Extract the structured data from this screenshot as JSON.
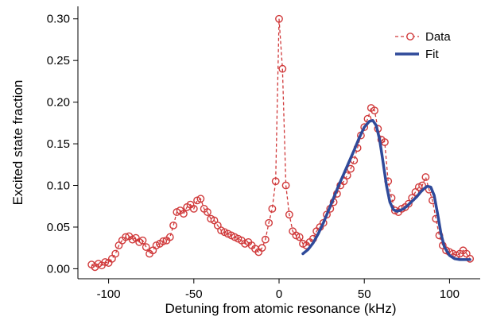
{
  "chart_data": {
    "type": "line",
    "xlabel": "Detuning from atomic resonance (kHz)",
    "ylabel": "Excited state fraction",
    "xlim": [
      -118,
      118
    ],
    "ylim": [
      -0.012,
      0.315
    ],
    "xticks": [
      -100,
      -50,
      0,
      50,
      100
    ],
    "xtick_labels": [
      "-100",
      "-50",
      "0",
      "50",
      "100"
    ],
    "yticks": [
      0.0,
      0.05,
      0.1,
      0.15,
      0.2,
      0.25,
      0.3
    ],
    "ytick_labels": [
      "0.00",
      "0.05",
      "0.10",
      "0.15",
      "0.20",
      "0.25",
      "0.30"
    ],
    "grid": false,
    "legend_position": "top-right",
    "colors": {
      "data": "#d0393a",
      "fit": "#2f4a9a"
    },
    "series": [
      {
        "name": "Data",
        "style": "dashed line with open circle markers",
        "x": [
          -110,
          -108,
          -106,
          -104,
          -102,
          -100,
          -98,
          -96,
          -94,
          -92,
          -90,
          -88,
          -86,
          -84,
          -82,
          -80,
          -78,
          -76,
          -74,
          -72,
          -70,
          -68,
          -66,
          -64,
          -62,
          -60,
          -58,
          -56,
          -54,
          -52,
          -50,
          -48,
          -46,
          -44,
          -42,
          -40,
          -38,
          -36,
          -34,
          -32,
          -30,
          -28,
          -26,
          -24,
          -22,
          -20,
          -18,
          -16,
          -14,
          -12,
          -10,
          -8,
          -6,
          -4,
          -2,
          0,
          2,
          4,
          6,
          8,
          10,
          12,
          14,
          16,
          18,
          20,
          22,
          24,
          26,
          28,
          30,
          32,
          34,
          36,
          38,
          40,
          42,
          44,
          46,
          48,
          50,
          52,
          54,
          56,
          58,
          60,
          62,
          64,
          66,
          68,
          70,
          72,
          74,
          76,
          78,
          80,
          82,
          84,
          86,
          88,
          90,
          92,
          94,
          96,
          98,
          100,
          102,
          104,
          106,
          108,
          110,
          112
        ],
        "y": [
          0.005,
          0.002,
          0.006,
          0.004,
          0.008,
          0.007,
          0.012,
          0.018,
          0.028,
          0.034,
          0.038,
          0.039,
          0.035,
          0.037,
          0.032,
          0.034,
          0.026,
          0.018,
          0.022,
          0.028,
          0.03,
          0.033,
          0.034,
          0.038,
          0.052,
          0.068,
          0.07,
          0.066,
          0.074,
          0.077,
          0.072,
          0.082,
          0.084,
          0.072,
          0.068,
          0.06,
          0.058,
          0.052,
          0.046,
          0.044,
          0.042,
          0.04,
          0.038,
          0.036,
          0.034,
          0.03,
          0.032,
          0.028,
          0.024,
          0.02,
          0.025,
          0.035,
          0.055,
          0.072,
          0.105,
          0.3,
          0.24,
          0.1,
          0.065,
          0.045,
          0.04,
          0.038,
          0.03,
          0.028,
          0.032,
          0.036,
          0.045,
          0.05,
          0.055,
          0.065,
          0.072,
          0.08,
          0.09,
          0.1,
          0.105,
          0.112,
          0.12,
          0.13,
          0.145,
          0.16,
          0.17,
          0.18,
          0.193,
          0.19,
          0.168,
          0.155,
          0.152,
          0.105,
          0.085,
          0.07,
          0.068,
          0.072,
          0.074,
          0.078,
          0.085,
          0.092,
          0.098,
          0.1,
          0.11,
          0.095,
          0.082,
          0.06,
          0.04,
          0.028,
          0.022,
          0.02,
          0.018,
          0.016,
          0.018,
          0.022,
          0.018,
          0.012
        ]
      },
      {
        "name": "Fit",
        "style": "solid line",
        "x": [
          14,
          17,
          20,
          23,
          26,
          29,
          32,
          35,
          38,
          41,
          44,
          47,
          50,
          53,
          55,
          57,
          59,
          61,
          63,
          65,
          67,
          69,
          71,
          73,
          75,
          77,
          79,
          81,
          83,
          85,
          87,
          89,
          91,
          93,
          95,
          97,
          100,
          103,
          106,
          109,
          112
        ],
        "y": [
          0.018,
          0.023,
          0.031,
          0.042,
          0.055,
          0.07,
          0.085,
          0.1,
          0.114,
          0.128,
          0.142,
          0.157,
          0.17,
          0.177,
          0.178,
          0.172,
          0.155,
          0.128,
          0.1,
          0.08,
          0.071,
          0.069,
          0.07,
          0.072,
          0.075,
          0.079,
          0.083,
          0.087,
          0.092,
          0.096,
          0.099,
          0.098,
          0.088,
          0.066,
          0.042,
          0.026,
          0.016,
          0.012,
          0.011,
          0.011,
          0.011
        ]
      }
    ]
  }
}
